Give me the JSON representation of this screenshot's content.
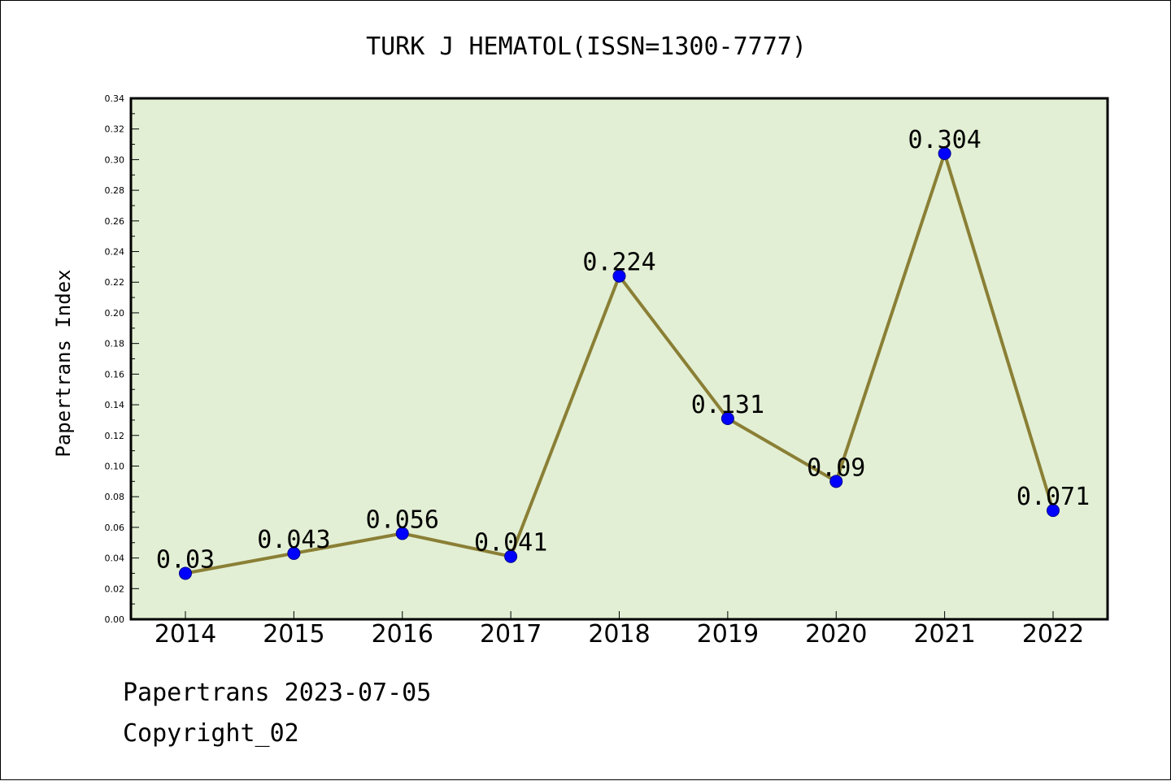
{
  "chart_data": {
    "type": "line",
    "title": "TURK J HEMATOL(ISSN=1300-7777)",
    "ylabel": "Papertrans Index",
    "xlabel": "",
    "categories": [
      "2014",
      "2015",
      "2016",
      "2017",
      "2018",
      "2019",
      "2020",
      "2021",
      "2022"
    ],
    "values": [
      0.03,
      0.043,
      0.056,
      0.041,
      0.224,
      0.131,
      0.09,
      0.304,
      0.071
    ],
    "data_labels": [
      "0.03",
      "0.043",
      "0.056",
      "0.041",
      "0.224",
      "0.131",
      "0.09",
      "0.304",
      "0.071"
    ],
    "ylim": [
      0,
      0.34
    ],
    "yticks": [
      "0.00",
      "0.02",
      "0.04",
      "0.06",
      "0.08",
      "0.10",
      "0.12",
      "0.14",
      "0.16",
      "0.18",
      "0.20",
      "0.22",
      "0.24",
      "0.26",
      "0.28",
      "0.30",
      "0.32",
      "0.34"
    ],
    "grid": false,
    "colors": {
      "plot_background": "#e2efd4",
      "line": "#8a7f35",
      "marker": "#0000ff"
    }
  },
  "footer": {
    "line1": "Papertrans 2023-07-05",
    "line2": "Copyright_02"
  }
}
